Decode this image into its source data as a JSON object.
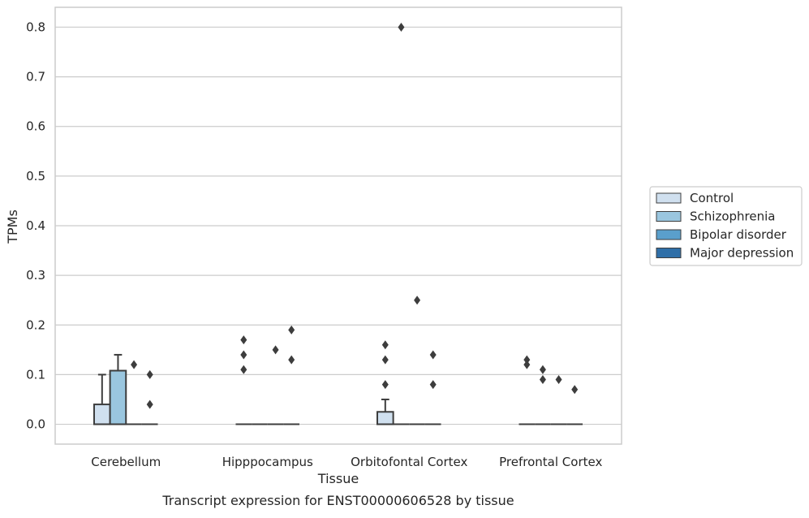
{
  "caption": "Transcript expression for ENST00000606528 by tissue",
  "chart_data": {
    "type": "box",
    "xlabel": "Tissue",
    "ylabel": "TPMs",
    "ylim": [
      -0.04,
      0.84
    ],
    "yticks": [
      0.0,
      0.1,
      0.2,
      0.3,
      0.4,
      0.5,
      0.6,
      0.7,
      0.8
    ],
    "ytick_labels": [
      "0.0",
      "0.1",
      "0.2",
      "0.3",
      "0.4",
      "0.5",
      "0.6",
      "0.7",
      "0.8"
    ],
    "grid": "horizontal",
    "legend_position": "right",
    "categories": [
      "Cerebellum",
      "Hipppocampus",
      "Orbitofontal Cortex",
      "Prefrontal Cortex"
    ],
    "series": [
      {
        "name": "Control",
        "color": "#d0e0ef",
        "boxes": [
          {
            "q1": 0.0,
            "median": 0.0,
            "q3": 0.04,
            "whisker_low": 0.0,
            "whisker_high": 0.1,
            "outliers": []
          },
          {
            "q1": 0.0,
            "median": 0.0,
            "q3": 0.0,
            "whisker_low": 0.0,
            "whisker_high": 0.0,
            "outliers": [
              0.11,
              0.14,
              0.17
            ]
          },
          {
            "q1": 0.0,
            "median": 0.0,
            "q3": 0.025,
            "whisker_low": 0.0,
            "whisker_high": 0.05,
            "outliers": [
              0.08,
              0.13,
              0.16
            ]
          },
          {
            "q1": 0.0,
            "median": 0.0,
            "q3": 0.0,
            "whisker_low": 0.0,
            "whisker_high": 0.0,
            "outliers": [
              0.12,
              0.13
            ]
          }
        ]
      },
      {
        "name": "Schizophrenia",
        "color": "#9ac6df",
        "boxes": [
          {
            "q1": 0.0,
            "median": 0.0,
            "q3": 0.108,
            "whisker_low": 0.0,
            "whisker_high": 0.14,
            "outliers": []
          },
          {
            "q1": 0.0,
            "median": 0.0,
            "q3": 0.0,
            "whisker_low": 0.0,
            "whisker_high": 0.0,
            "outliers": []
          },
          {
            "q1": 0.0,
            "median": 0.0,
            "q3": 0.0,
            "whisker_low": 0.0,
            "whisker_high": 0.0,
            "outliers": [
              0.8
            ]
          },
          {
            "q1": 0.0,
            "median": 0.0,
            "q3": 0.0,
            "whisker_low": 0.0,
            "whisker_high": 0.0,
            "outliers": [
              0.09,
              0.11
            ]
          }
        ]
      },
      {
        "name": "Bipolar disorder",
        "color": "#5a9fcc",
        "boxes": [
          {
            "q1": 0.0,
            "median": 0.0,
            "q3": 0.0,
            "whisker_low": 0.0,
            "whisker_high": 0.0,
            "outliers": [
              0.12
            ]
          },
          {
            "q1": 0.0,
            "median": 0.0,
            "q3": 0.0,
            "whisker_low": 0.0,
            "whisker_high": 0.0,
            "outliers": [
              0.15
            ]
          },
          {
            "q1": 0.0,
            "median": 0.0,
            "q3": 0.0,
            "whisker_low": 0.0,
            "whisker_high": 0.0,
            "outliers": [
              0.25
            ]
          },
          {
            "q1": 0.0,
            "median": 0.0,
            "q3": 0.0,
            "whisker_low": 0.0,
            "whisker_high": 0.0,
            "outliers": [
              0.09
            ]
          }
        ]
      },
      {
        "name": "Major depression",
        "color": "#2f6fa8",
        "boxes": [
          {
            "q1": 0.0,
            "median": 0.0,
            "q3": 0.0,
            "whisker_low": 0.0,
            "whisker_high": 0.0,
            "outliers": [
              0.04,
              0.1
            ]
          },
          {
            "q1": 0.0,
            "median": 0.0,
            "q3": 0.0,
            "whisker_low": 0.0,
            "whisker_high": 0.0,
            "outliers": [
              0.13,
              0.19
            ]
          },
          {
            "q1": 0.0,
            "median": 0.0,
            "q3": 0.0,
            "whisker_low": 0.0,
            "whisker_high": 0.0,
            "outliers": [
              0.08,
              0.14
            ]
          },
          {
            "q1": 0.0,
            "median": 0.0,
            "q3": 0.0,
            "whisker_low": 0.0,
            "whisker_high": 0.0,
            "outliers": [
              0.07
            ]
          }
        ]
      }
    ],
    "colors": {
      "grid": "#cccccc",
      "frame": "#cccccc",
      "box_edge": "#3d3d3d",
      "outlier": "#3d3d3d",
      "legend_border": "#cccccc"
    }
  }
}
